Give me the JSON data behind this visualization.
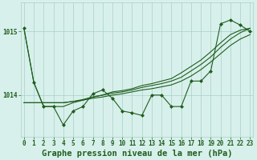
{
  "title": "Graphe pression niveau de la mer (hPa)",
  "x_values": [
    0,
    1,
    2,
    3,
    4,
    5,
    6,
    7,
    8,
    9,
    10,
    11,
    12,
    13,
    14,
    15,
    16,
    17,
    18,
    19,
    20,
    21,
    22,
    23
  ],
  "main_line": [
    1015.05,
    1014.2,
    1013.82,
    1013.82,
    1013.53,
    1013.75,
    1013.82,
    1014.02,
    1014.08,
    1013.95,
    1013.75,
    1013.72,
    1013.68,
    1014.0,
    1014.0,
    1013.82,
    1013.82,
    1014.22,
    1014.22,
    1014.38,
    1015.12,
    1015.18,
    1015.1,
    1015.0
  ],
  "trend1": [
    1013.88,
    1013.88,
    1013.88,
    1013.88,
    1013.88,
    1013.9,
    1013.92,
    1013.95,
    1013.97,
    1014.0,
    1014.02,
    1014.05,
    1014.08,
    1014.1,
    1014.13,
    1014.16,
    1014.22,
    1014.3,
    1014.4,
    1014.52,
    1014.65,
    1014.78,
    1014.88,
    1014.95
  ],
  "trend2": [
    1013.88,
    1013.88,
    1013.88,
    1013.88,
    1013.88,
    1013.9,
    1013.93,
    1013.97,
    1014.0,
    1014.03,
    1014.05,
    1014.08,
    1014.12,
    1014.15,
    1014.18,
    1014.22,
    1014.28,
    1014.38,
    1014.48,
    1014.6,
    1014.75,
    1014.88,
    1014.98,
    1015.05
  ],
  "trend3": [
    1015.05,
    1014.2,
    1013.82,
    1013.82,
    1013.82,
    1013.88,
    1013.92,
    1013.97,
    1014.0,
    1014.05,
    1014.07,
    1014.1,
    1014.15,
    1014.18,
    1014.22,
    1014.26,
    1014.35,
    1014.45,
    1014.55,
    1014.68,
    1014.82,
    1014.95,
    1015.02,
    1015.05
  ],
  "bg_color": "#d8f0eb",
  "line_color": "#1f5e1f",
  "grid_color": "#a8cfc8",
  "yticks": [
    1014,
    1015
  ],
  "ylim": [
    1013.35,
    1015.45
  ],
  "xlim": [
    -0.3,
    23.3
  ],
  "tick_fontsize": 5.5,
  "label_fontsize": 7.5
}
